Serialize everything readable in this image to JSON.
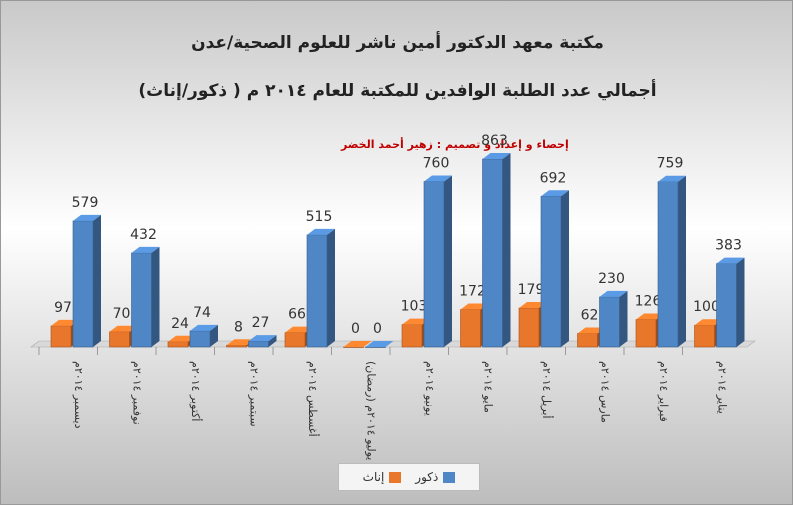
{
  "titles": {
    "line1": "مكتبة معهد الدكتور أمين ناشر للعلوم الصحية/عدن",
    "line2": "أجمالي عدد الطلبة الوافدين للمكتبة للعام ٢٠١٤ م ( ذكور/إناث)",
    "credit": "إحصاء و إعداد و تصميم : زهير أحمد الخضر"
  },
  "colors": {
    "male": "#4f86c6",
    "female": "#e9772b"
  },
  "chart_data": {
    "type": "bar",
    "categories": [
      "ديسمبر ٢٠١٤م",
      "نوفمبر ٢٠١٤م",
      "أكتوبر ٢٠١٤م",
      "سبتمبر ٢٠١٤م",
      "أغسطس ٢٠١٤م",
      "يوليو ٢٠١٤م (رمضان)",
      "يونيو ٢٠١٤م",
      "مايو ٢٠١٤م",
      "أبريل ٢٠١٤م",
      "مارس ٢٠١٤م",
      "فبراير ٢٠١٤م",
      "يناير ٢٠١٤م"
    ],
    "series": [
      {
        "name": "إناث",
        "values": [
          97,
          70,
          24,
          8,
          66,
          0,
          103,
          172,
          179,
          62,
          126,
          100
        ]
      },
      {
        "name": "ذكور",
        "values": [
          579,
          432,
          74,
          27,
          515,
          0,
          760,
          863,
          692,
          230,
          759,
          383
        ]
      }
    ],
    "ylim": [
      0,
      900
    ],
    "legend": "bottom"
  }
}
